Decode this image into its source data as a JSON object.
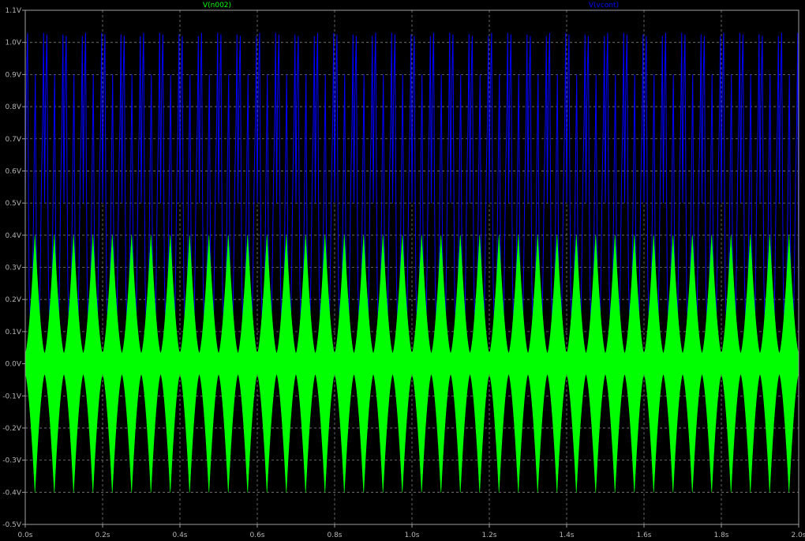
{
  "chart_data": {
    "type": "line",
    "title": "",
    "xlabel": "",
    "ylabel": "",
    "xlim": [
      0,
      2.0
    ],
    "ylim": [
      -0.5,
      1.1
    ],
    "grid": true,
    "background": "#000000",
    "x_ticks": [
      "0.0s",
      "0.2s",
      "0.4s",
      "0.6s",
      "0.8s",
      "1.0s",
      "1.2s",
      "1.4s",
      "1.6s",
      "1.8s",
      "2.0s"
    ],
    "y_ticks": [
      "1.1V",
      "1.0V",
      "0.9V",
      "0.8V",
      "0.7V",
      "0.6V",
      "0.5V",
      "0.4V",
      "0.3V",
      "0.2V",
      "0.1V",
      "0.0V",
      "-0.1V",
      "-0.2V",
      "-0.3V",
      "-0.4V",
      "-0.5V"
    ],
    "series": [
      {
        "name": "V(n002)",
        "color": "#00ff00",
        "description_values": {
          "envelope_period_s": 0.05,
          "peak_amplitude": 0.4,
          "trough_amplitude": 0.0,
          "carrier_frequency_hz": 1000
        }
      },
      {
        "name": "V(vcont)",
        "color": "#0000ff",
        "description_values": {
          "period_s": 0.05,
          "max": 1.03,
          "min": 0.08
        }
      }
    ]
  }
}
